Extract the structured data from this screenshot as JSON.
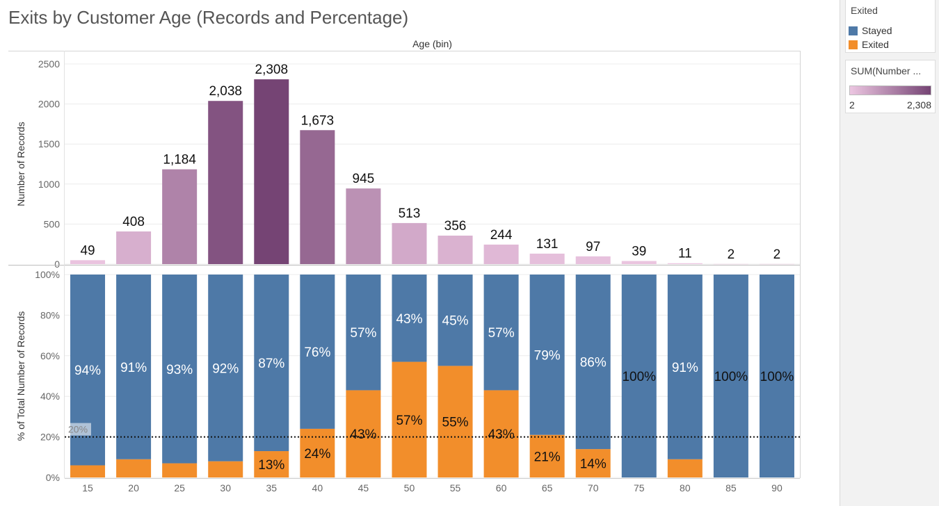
{
  "title": "Exits by Customer Age (Records and Percentage)",
  "legend_color": {
    "title": "Exited",
    "items": [
      {
        "label": "Stayed",
        "color": "#4e79a7"
      },
      {
        "label": "Exited",
        "color": "#f28e2b"
      }
    ]
  },
  "legend_gradient": {
    "title": "SUM(Number ...",
    "min_label": "2",
    "max_label": "2,308",
    "color_low": "#ecc6e1",
    "color_high": "#754474"
  },
  "chart_data": [
    {
      "type": "bar",
      "header": "Age (bin)",
      "ylabel": "Number of Records",
      "ylim": [
        0,
        2500
      ],
      "yticks": [
        "0",
        "500",
        "1000",
        "1500",
        "2000",
        "2500"
      ],
      "categories": [
        "15",
        "20",
        "25",
        "30",
        "35",
        "40",
        "45",
        "50",
        "55",
        "60",
        "65",
        "70",
        "75",
        "80",
        "85",
        "90"
      ],
      "values": [
        49,
        408,
        1184,
        2038,
        2308,
        1673,
        945,
        513,
        356,
        244,
        131,
        97,
        39,
        11,
        2,
        2
      ],
      "value_labels": [
        "49",
        "408",
        "1,184",
        "2,038",
        "2,308",
        "1,673",
        "945",
        "513",
        "356",
        "244",
        "131",
        "97",
        "39",
        "11",
        "2",
        "2"
      ]
    },
    {
      "type": "bar",
      "stacked": true,
      "ylabel": "% of Total Number of Records",
      "ylim": [
        0,
        100
      ],
      "yticks": [
        "0%",
        "20%",
        "40%",
        "60%",
        "80%",
        "100%"
      ],
      "reference_line": {
        "value": 20,
        "label": "20%"
      },
      "categories": [
        "15",
        "20",
        "25",
        "30",
        "35",
        "40",
        "45",
        "50",
        "55",
        "60",
        "65",
        "70",
        "75",
        "80",
        "85",
        "90"
      ],
      "series": [
        {
          "name": "Exited",
          "values": [
            6,
            9,
            7,
            8,
            13,
            24,
            43,
            57,
            55,
            43,
            21,
            14,
            0,
            9,
            0,
            0
          ],
          "labels": [
            "",
            "",
            "",
            "",
            "13%",
            "24%",
            "43%",
            "57%",
            "55%",
            "43%",
            "21%",
            "14%",
            "",
            "",
            "",
            ""
          ]
        },
        {
          "name": "Stayed",
          "values": [
            94,
            91,
            93,
            92,
            87,
            76,
            57,
            43,
            45,
            57,
            79,
            86,
            100,
            91,
            100,
            100
          ],
          "labels": [
            "94%",
            "91%",
            "93%",
            "92%",
            "87%",
            "76%",
            "57%",
            "43%",
            "45%",
            "57%",
            "79%",
            "86%",
            "100%",
            "91%",
            "100%",
            "100%"
          ]
        }
      ]
    }
  ]
}
